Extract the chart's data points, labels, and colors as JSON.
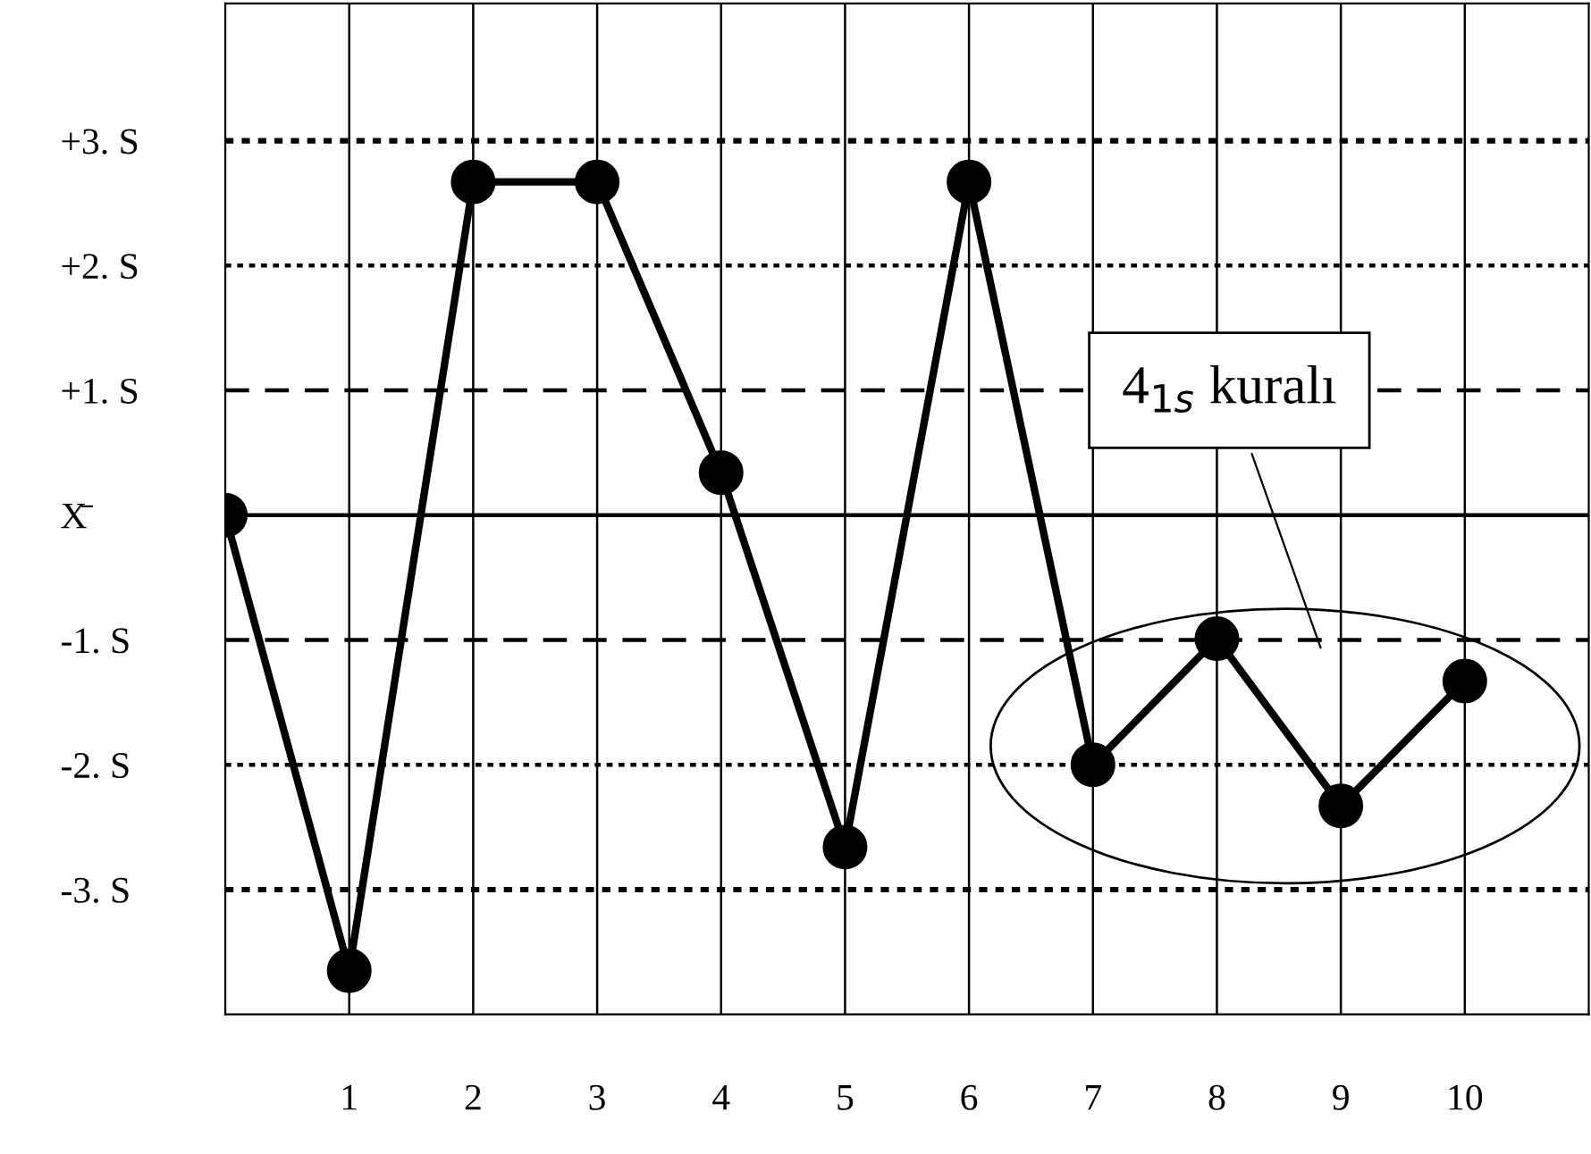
{
  "chart_data": {
    "type": "line",
    "x": [
      0,
      1,
      2,
      3,
      4,
      5,
      6,
      7,
      8,
      9,
      10
    ],
    "series": [
      {
        "color": "#000000",
        "values": [
          0,
          -3.65,
          2.67,
          2.67,
          0.34,
          -2.66,
          2.67,
          -2.0,
          -0.99,
          -2.33,
          -1.33
        ]
      }
    ],
    "marker": "circle",
    "line_style": "solid",
    "xlim": [
      0,
      11
    ],
    "xticks": [
      1,
      2,
      3,
      4,
      5,
      6,
      7,
      8,
      9,
      10
    ],
    "ylim": [
      -4,
      4.1
    ],
    "yticks": [
      {
        "value": 3,
        "label": "+3. S"
      },
      {
        "value": 2,
        "label": "+2. S"
      },
      {
        "value": 1,
        "label": "+1. S"
      },
      {
        "value": 0,
        "label": "X̄"
      },
      {
        "value": -1,
        "label": "-1. S"
      },
      {
        "value": -2,
        "label": "-2. S"
      },
      {
        "value": -3,
        "label": "-3. S"
      }
    ],
    "grid": "x",
    "ref_lines": [
      {
        "axis": "y",
        "value": 3,
        "color": "#000000",
        "line_style": "dotted"
      },
      {
        "axis": "y",
        "value": 2,
        "color": "#000000",
        "line_style": "dotted"
      },
      {
        "axis": "y",
        "value": 1,
        "color": "#000000",
        "line_style": "dashed"
      },
      {
        "axis": "y",
        "value": 0,
        "color": "#000000",
        "line_style": "solid"
      },
      {
        "axis": "y",
        "value": -1,
        "color": "#000000",
        "line_style": "dashed"
      },
      {
        "axis": "y",
        "value": -2,
        "color": "#000000",
        "line_style": "dotted"
      },
      {
        "axis": "y",
        "value": -3,
        "color": "#000000",
        "line_style": "dotted"
      }
    ],
    "annotations": [
      "4$_{1s}$ kuralı"
    ]
  }
}
